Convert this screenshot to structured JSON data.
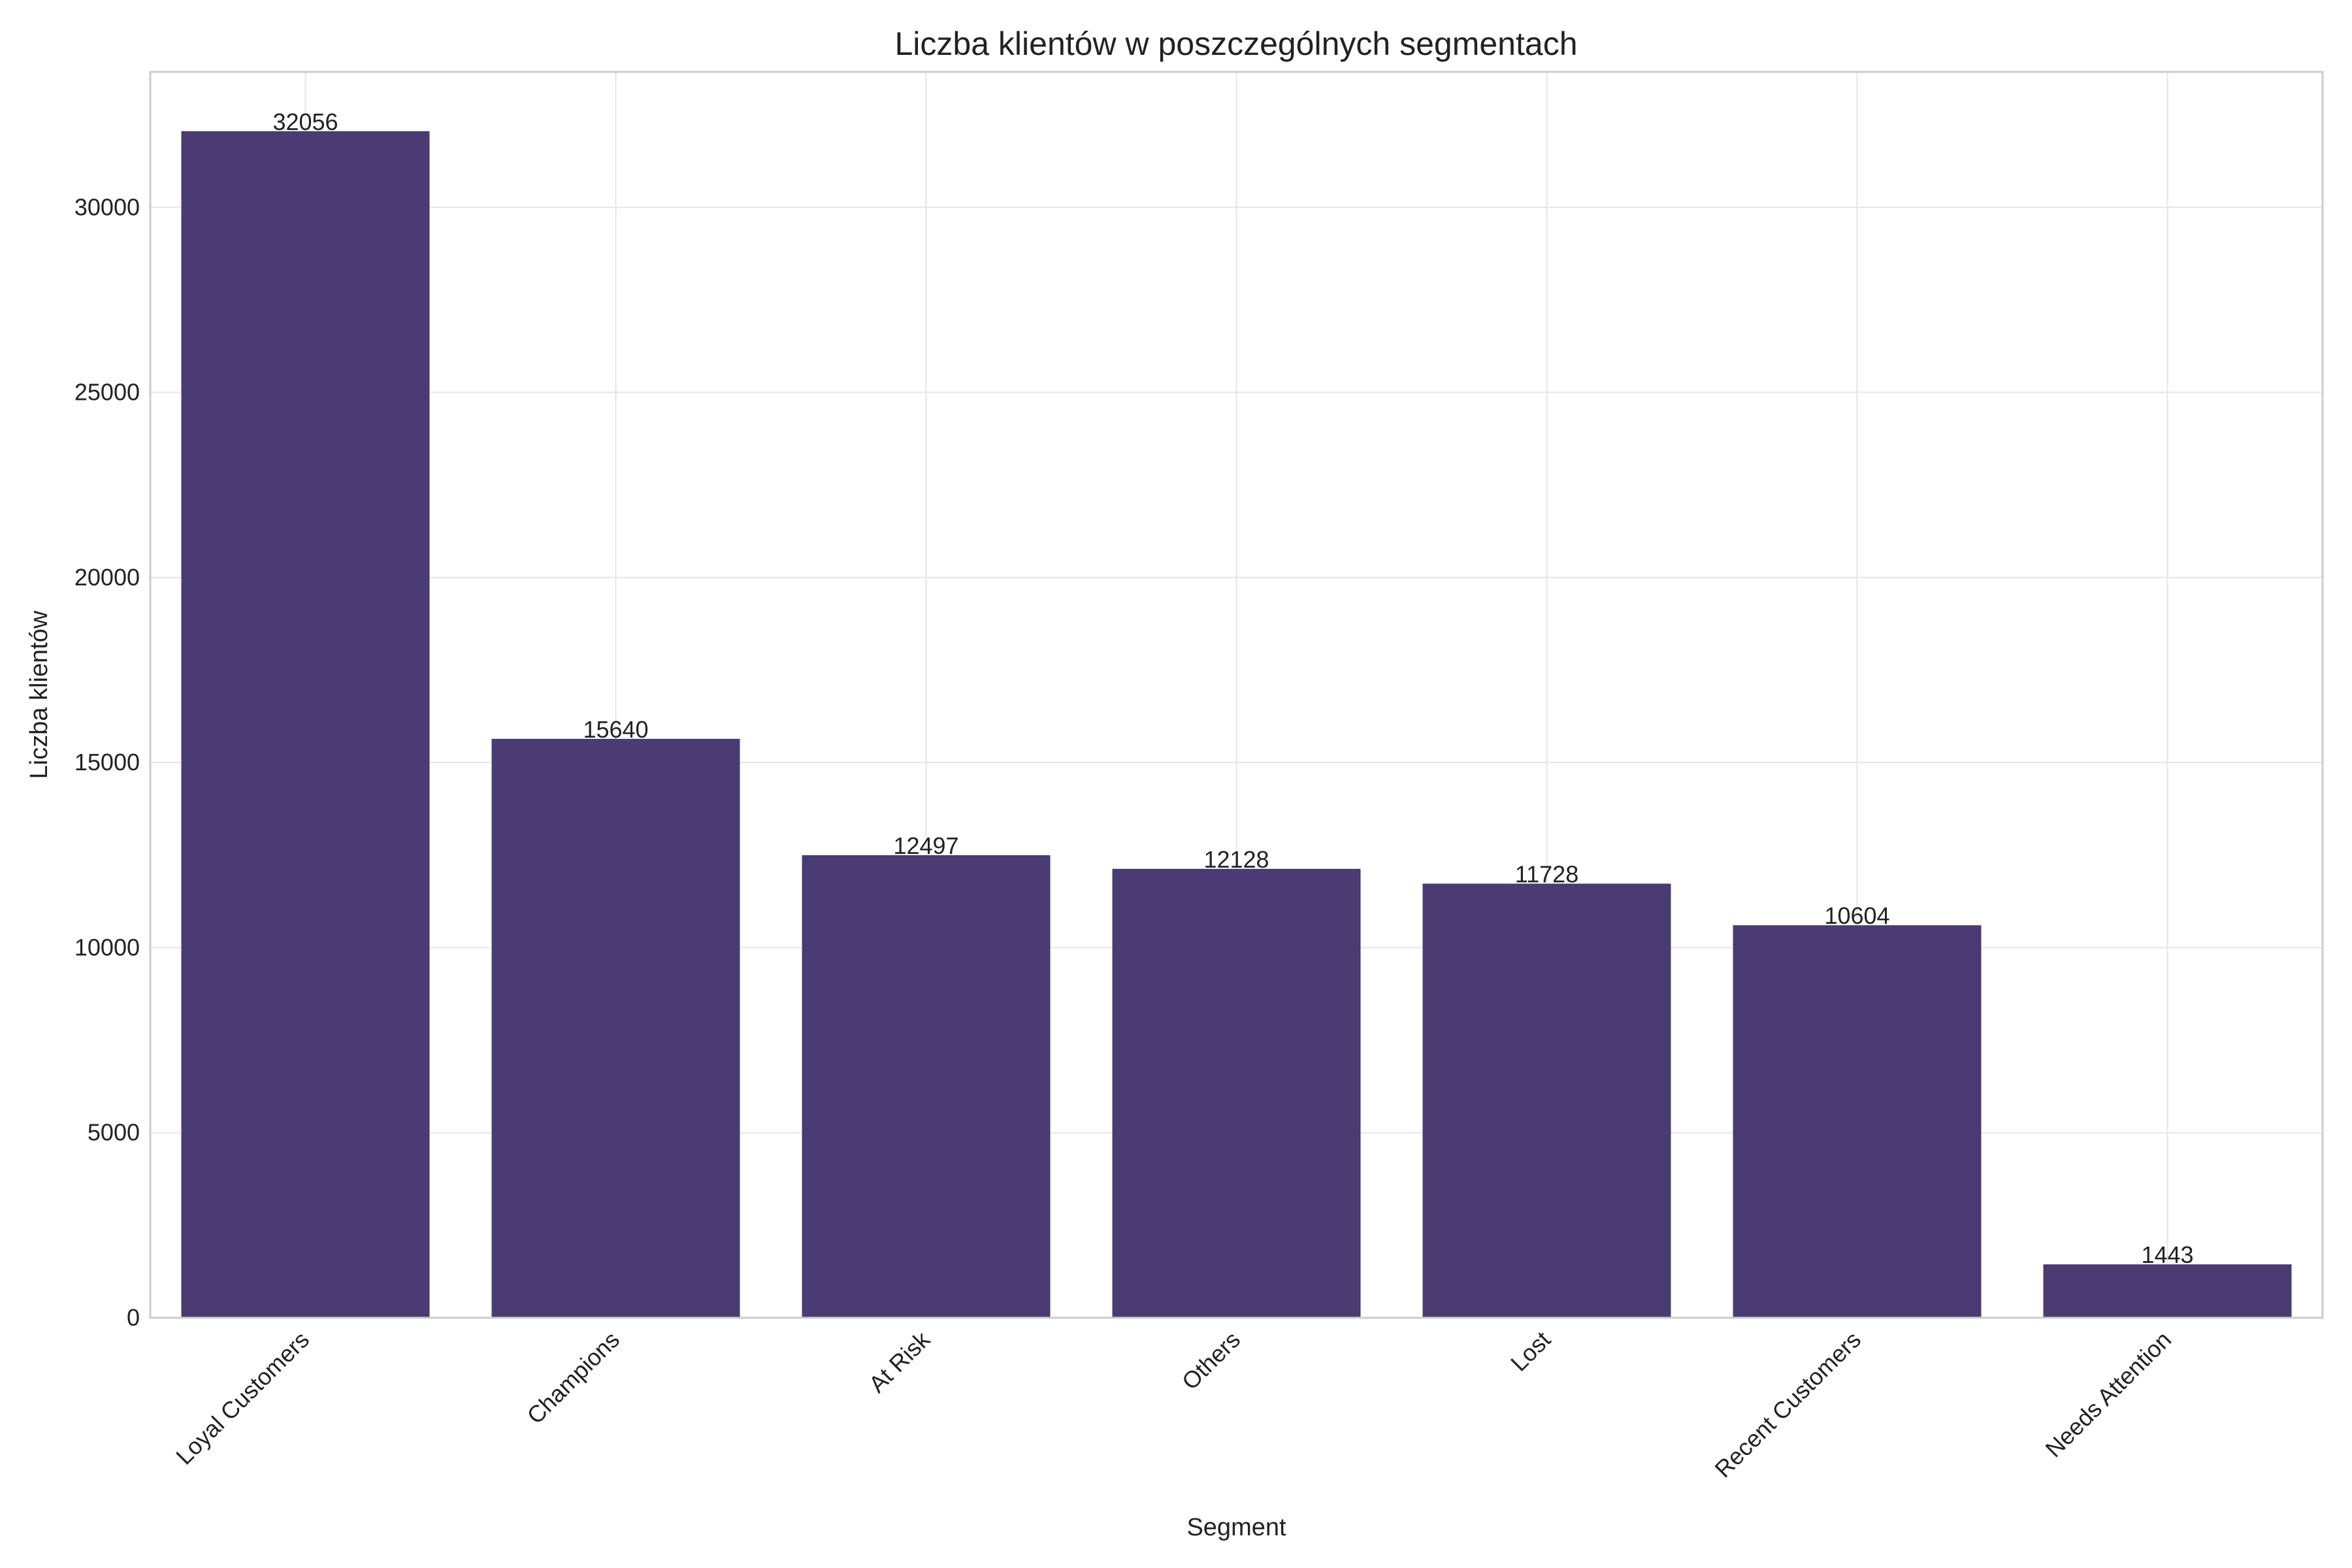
{
  "chart_data": {
    "type": "bar",
    "title": "Liczba klientów w poszczególnych segmentach",
    "xlabel": "Segment",
    "ylabel": "Liczba klientów",
    "categories": [
      "Loyal Customers",
      "Champions",
      "At Risk",
      "Others",
      "Lost",
      "Recent Customers",
      "Needs Attention"
    ],
    "values": [
      32056,
      15640,
      12497,
      12128,
      11728,
      10604,
      1443
    ],
    "value_labels": [
      "32056",
      "15640",
      "12497",
      "12128",
      "11728",
      "10604",
      "1443"
    ],
    "yticks": [
      0,
      5000,
      10000,
      15000,
      20000,
      25000,
      30000
    ],
    "ytick_labels": [
      "0",
      "5000",
      "10000",
      "15000",
      "20000",
      "25000",
      "30000"
    ],
    "ylim": [
      0,
      33658
    ],
    "grid": true,
    "bar_color": "#4a3b73",
    "xtick_rotation": -45
  }
}
